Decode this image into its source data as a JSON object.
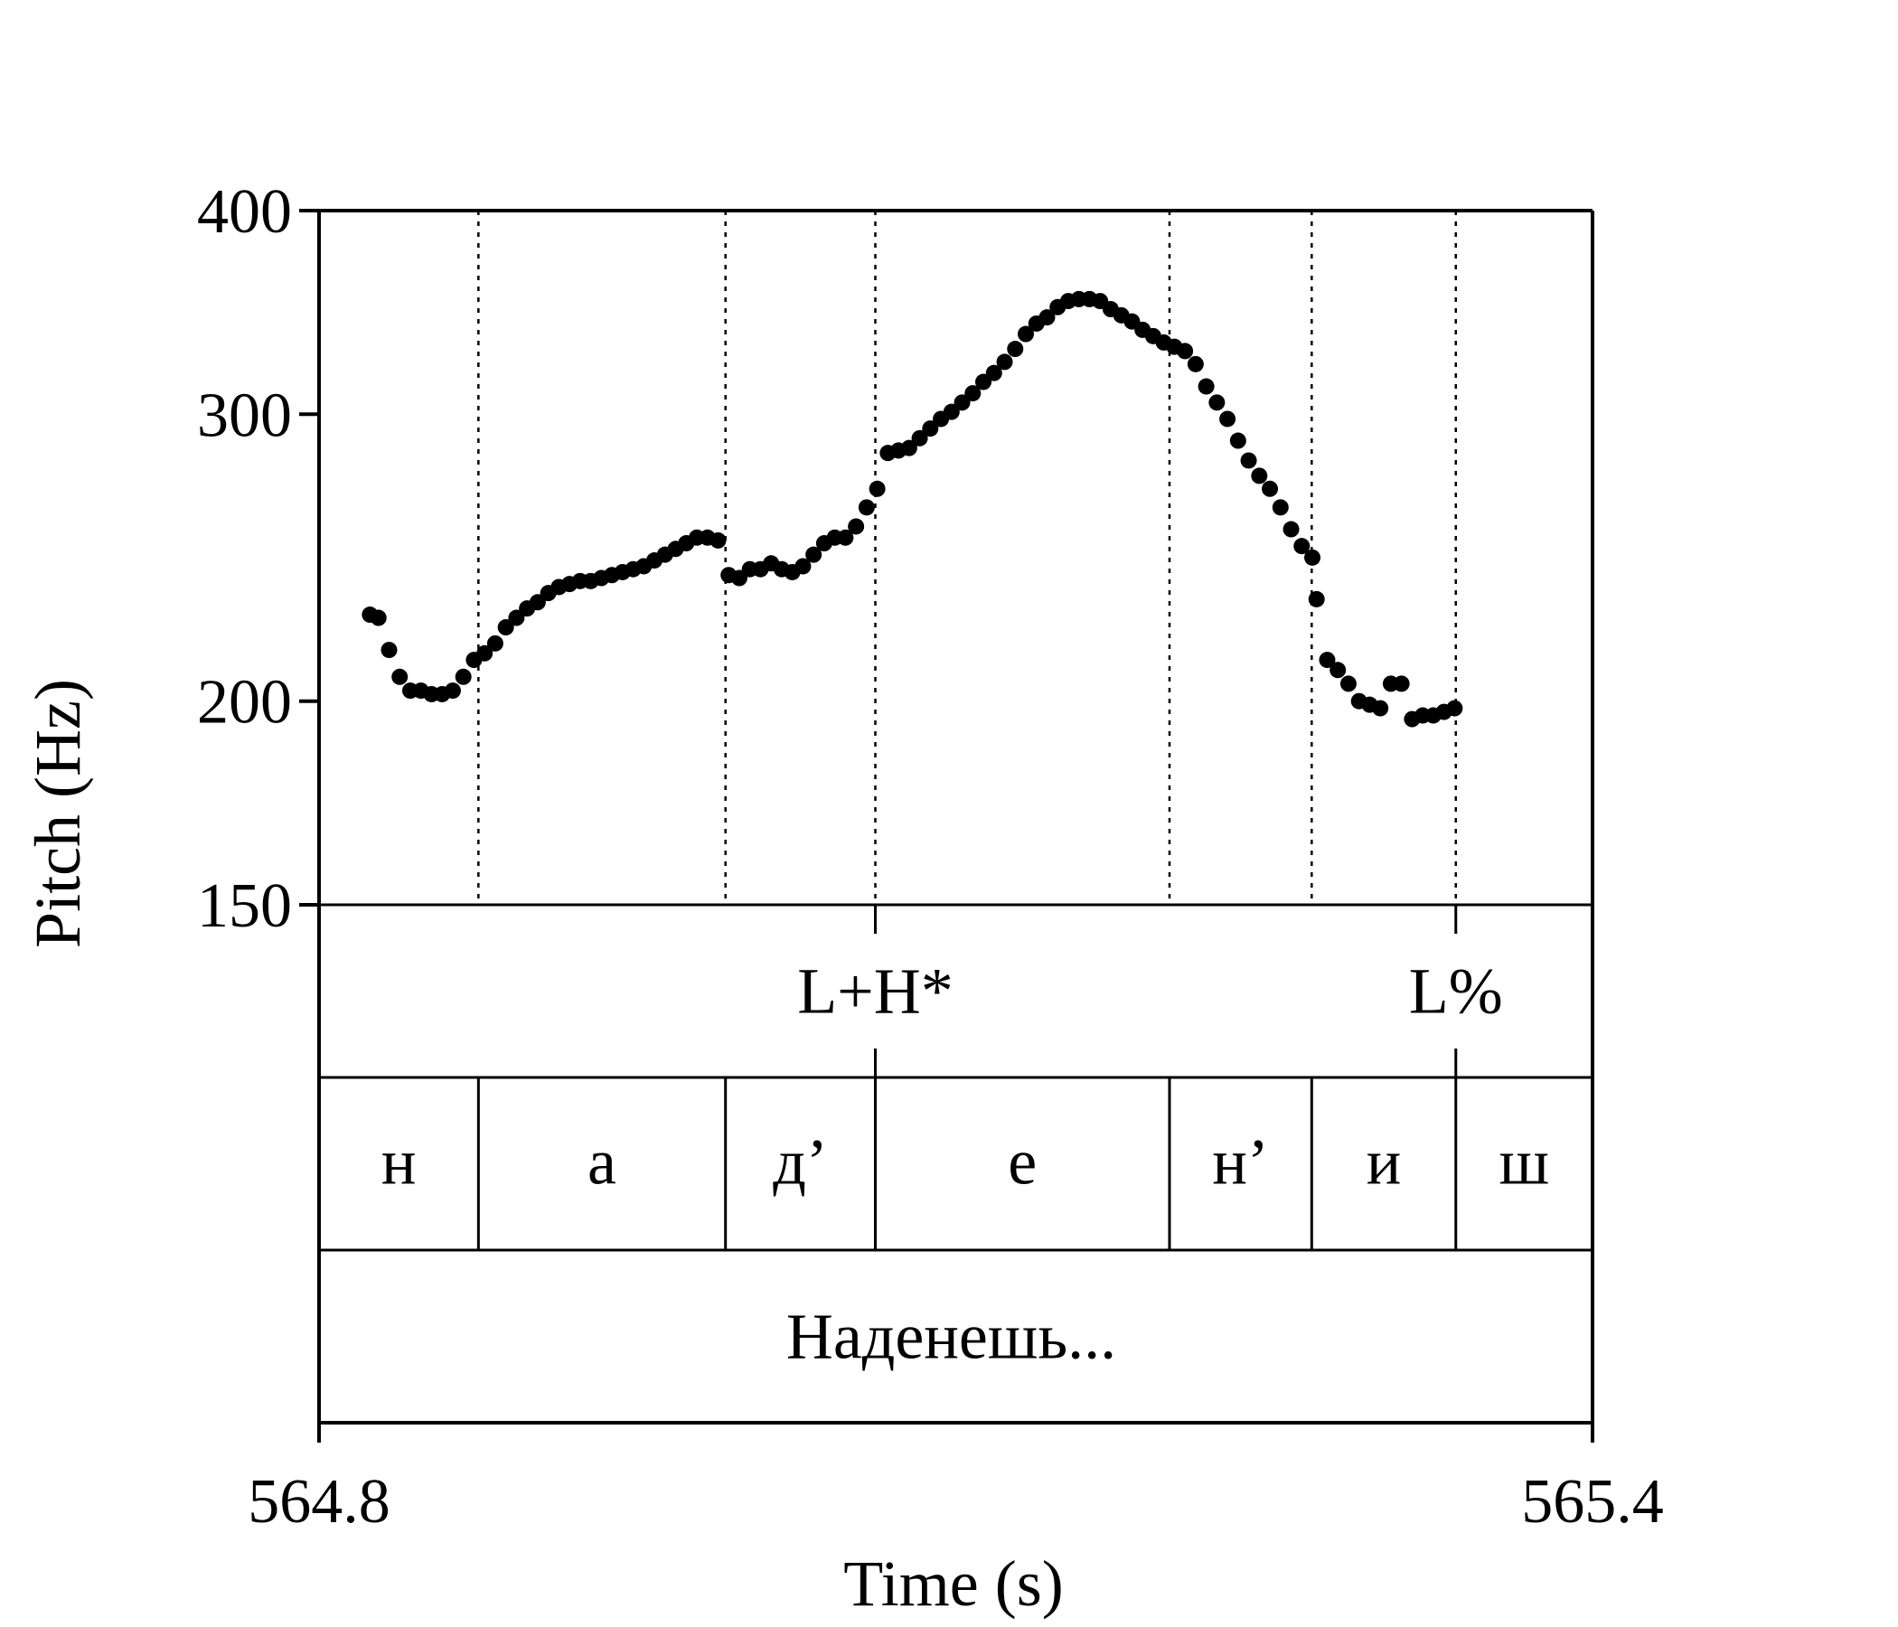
{
  "chart_data": {
    "type": "scatter",
    "xlabel": "Time (s)",
    "ylabel": "Pitch (Hz)",
    "xlim": [
      564.8,
      565.4
    ],
    "ylim": [
      150,
      400
    ],
    "y_scale": "log",
    "x_ticks": [
      "564.8",
      "565.4"
    ],
    "y_ticks": [
      {
        "value": 150,
        "label": "150"
      },
      {
        "value": 200,
        "label": "200"
      },
      {
        "value": 300,
        "label": "300"
      },
      {
        "value": 400,
        "label": "400"
      }
    ],
    "segment_boundaries": [
      564.8751,
      564.9915,
      565.0621,
      565.2007,
      565.2677,
      565.3356
    ],
    "tones": [
      {
        "label": "L+H*",
        "time": 565.0621
      },
      {
        "label": "L%",
        "time": 565.3356
      }
    ],
    "segments": [
      {
        "label": "н",
        "start": 564.8,
        "end": 564.8751
      },
      {
        "label": "а",
        "start": 564.8751,
        "end": 564.9915
      },
      {
        "label": "д’",
        "start": 564.9915,
        "end": 565.0621
      },
      {
        "label": "е",
        "start": 565.0621,
        "end": 565.2007
      },
      {
        "label": "н’",
        "start": 565.2007,
        "end": 565.2677
      },
      {
        "label": "и",
        "start": 565.2677,
        "end": 565.3356
      },
      {
        "label": "ш",
        "start": 565.3356,
        "end": 565.4
      }
    ],
    "word": {
      "label": "Наденешь...",
      "start": 564.8,
      "end": 565.4
    },
    "series": [
      {
        "contours": [
          {
            "x": [
              564.824,
              564.828,
              564.833,
              564.838,
              564.843,
              564.848,
              564.853,
              564.858,
              564.863,
              564.868,
              564.873,
              564.878,
              564.883,
              564.888,
              564.893,
              564.898,
              564.903,
              564.908,
              564.913,
              564.918,
              564.923,
              564.928,
              564.933,
              564.938,
              564.943,
              564.948,
              564.953,
              564.958,
              564.963,
              564.968,
              564.973,
              564.978,
              564.983,
              564.988
            ],
            "y": [
              226,
              225,
              215,
              207,
              203,
              203,
              202,
              202,
              203,
              207,
              212,
              214,
              217,
              222,
              225,
              228,
              230,
              233,
              235,
              236,
              237,
              237,
              238,
              239,
              240,
              241,
              242,
              244,
              246,
              248,
              250,
              252,
              252,
              251
            ]
          },
          {
            "x": [
              564.993,
              564.998,
              565.003,
              565.008,
              565.013,
              565.018,
              565.023,
              565.028,
              565.033,
              565.038,
              565.043,
              565.048,
              565.053,
              565.058,
              565.063,
              565.068,
              565.073,
              565.078,
              565.083,
              565.088,
              565.093,
              565.098,
              565.103,
              565.108,
              565.113,
              565.118,
              565.123,
              565.128,
              565.133,
              565.138,
              565.143,
              565.148,
              565.153,
              565.158,
              565.163,
              565.168,
              565.173,
              565.178,
              565.183,
              565.188,
              565.193,
              565.198,
              565.203,
              565.208,
              565.213,
              565.218,
              565.223,
              565.228,
              565.233,
              565.238,
              565.243,
              565.248,
              565.253,
              565.258,
              565.263,
              565.268
            ],
            "y": [
              239,
              238,
              241,
              241,
              243,
              241,
              240,
              242,
              246,
              250,
              252,
              252,
              256,
              263,
              270,
              284,
              285,
              286,
              290,
              294,
              298,
              301,
              305,
              309,
              314,
              318,
              323,
              329,
              336,
              341,
              344,
              349,
              352,
              353,
              353,
              352,
              348,
              345,
              342,
              338,
              335,
              332,
              330,
              328,
              322,
              312,
              305,
              298,
              289,
              281,
              275,
              270,
              263,
              255,
              249,
              245
            ]
          },
          {
            "x": [
              565.27,
              565.275,
              565.28,
              565.285,
              565.29,
              565.295,
              565.3,
              565.305,
              565.31,
              565.315,
              565.32,
              565.325,
              565.33,
              565.335
            ],
            "y": [
              231,
              212,
              209,
              205,
              200,
              199,
              198,
              205,
              205,
              195,
              196,
              196,
              197,
              198
            ]
          }
        ]
      }
    ]
  }
}
